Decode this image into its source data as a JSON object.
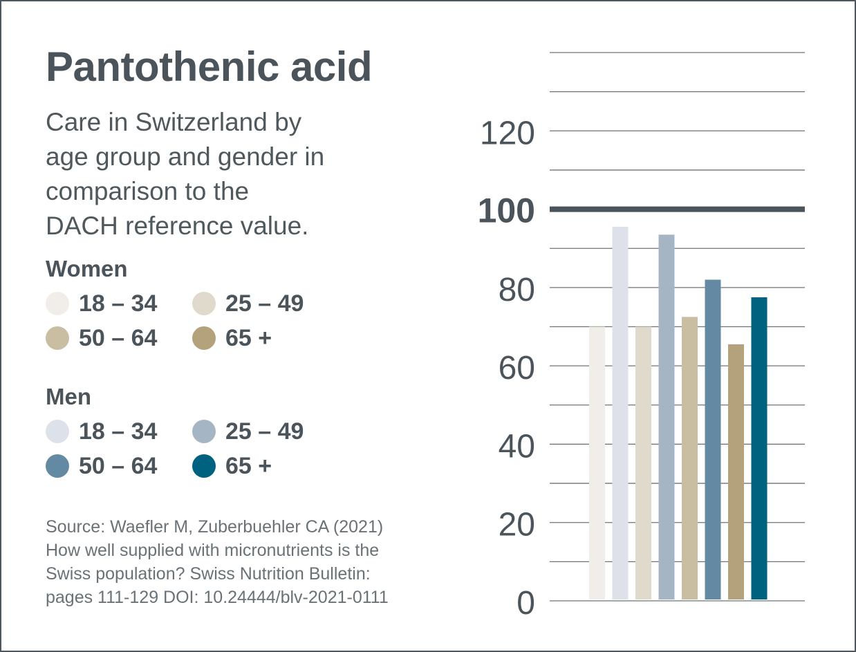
{
  "title": "Pantothenic acid",
  "subtitle": [
    "Care in Switzerland by",
    "age group and gender in",
    "comparison to the",
    "DACH reference value."
  ],
  "legend": {
    "women": {
      "heading": "Women",
      "items": [
        {
          "label": "18 – 34",
          "color": "#f1eee9"
        },
        {
          "label": "25 – 49",
          "color": "#e0dacd"
        },
        {
          "label": "50 – 64",
          "color": "#c9bda2"
        },
        {
          "label": "65 +",
          "color": "#b3a27c"
        }
      ]
    },
    "men": {
      "heading": "Men",
      "items": [
        {
          "label": "18 – 34",
          "color": "#dde2ea"
        },
        {
          "label": "25 – 49",
          "color": "#a6b5c4"
        },
        {
          "label": "50 – 64",
          "color": "#648aa3"
        },
        {
          "label": "65 +",
          "color": "#00627e"
        }
      ]
    }
  },
  "source": [
    "Source: Waefler M, Zuberbuehler CA (2021)",
    "How well supplied with micronutrients is the",
    "Swiss population? Swiss Nutrition Bulletin:",
    "pages 111-129 DOI: 10.24444/blv-2021-0111"
  ],
  "chart_data": {
    "type": "bar",
    "title": "Pantothenic acid",
    "ylim": [
      0,
      140
    ],
    "grid_step": 10,
    "yticks": [
      0,
      20,
      40,
      60,
      80,
      100,
      120
    ],
    "reference_value": 100,
    "grid": true,
    "legend_position": "left",
    "series": [
      {
        "group": "Women",
        "label": "18 – 34",
        "value": 70,
        "color": "#f1eee9"
      },
      {
        "group": "Men",
        "label": "18 – 34",
        "value": 95.5,
        "color": "#dde2ea"
      },
      {
        "group": "Women",
        "label": "25 – 49",
        "value": 70,
        "color": "#e0dacd"
      },
      {
        "group": "Men",
        "label": "25 – 49",
        "value": 93.5,
        "color": "#a6b5c4"
      },
      {
        "group": "Women",
        "label": "50 – 64",
        "value": 72.5,
        "color": "#c9bda2"
      },
      {
        "group": "Men",
        "label": "50 – 64",
        "value": 82,
        "color": "#648aa3"
      },
      {
        "group": "Women",
        "label": "65 +",
        "value": 65.5,
        "color": "#b3a27c"
      },
      {
        "group": "Men",
        "label": "65 +",
        "value": 77.5,
        "color": "#00627e"
      }
    ]
  }
}
